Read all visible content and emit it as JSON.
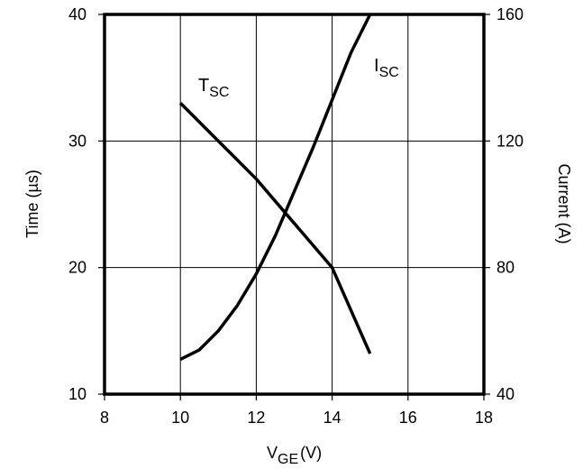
{
  "chart_data": {
    "type": "line",
    "title": "",
    "x_axis": {
      "label_main": "V",
      "label_sub": "GE",
      "label_unit": "(V)",
      "range": [
        8,
        18
      ],
      "ticks": [
        8,
        10,
        12,
        14,
        16,
        18
      ],
      "tick_labels": [
        "8",
        "10",
        "12",
        "14",
        "16",
        "18"
      ]
    },
    "y_axis_left": {
      "label": "Time (µs)",
      "range": [
        10,
        40
      ],
      "ticks": [
        10,
        20,
        30,
        40
      ],
      "tick_labels": [
        "10",
        "20",
        "30",
        "40"
      ]
    },
    "y_axis_right": {
      "label": "Current (A)",
      "range": [
        40,
        160
      ],
      "ticks": [
        40,
        80,
        120,
        160
      ],
      "tick_labels": [
        "40",
        "80",
        "120",
        "160"
      ]
    },
    "grid": true,
    "series": [
      {
        "name": "T",
        "name_sub": "SC",
        "axis": "left",
        "x": [
          10,
          11,
          12,
          13,
          14,
          15
        ],
        "y": [
          33.0,
          30.0,
          27.0,
          23.5,
          20.0,
          13.2
        ]
      },
      {
        "name": "I",
        "name_sub": "SC",
        "axis": "right",
        "x": [
          10,
          10.5,
          11,
          11.5,
          12,
          12.5,
          13,
          13.5,
          14,
          14.5,
          15
        ],
        "y": [
          51,
          54,
          60,
          68,
          78,
          90,
          104,
          118,
          133,
          148,
          160
        ]
      }
    ]
  }
}
